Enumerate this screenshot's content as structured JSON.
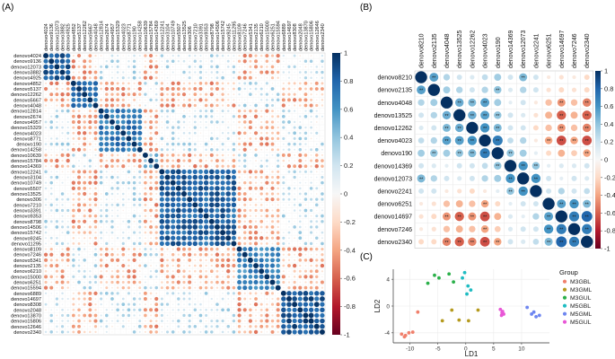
{
  "figure": {
    "panel_labels": [
      "(A)",
      "(B)",
      "(C)"
    ]
  },
  "chart_data": [
    {
      "panel": "(A)",
      "type": "heatmap",
      "subtype": "correlation-circle-matrix",
      "title": "",
      "labels": [
        "denovo4024",
        "denovo9136",
        "denovo12073",
        "denovo3882",
        "denovo4925",
        "denovo4852",
        "denovo5137",
        "denovo12262",
        "denovo5667",
        "denovo4048",
        "denovo12814",
        "denovo2674",
        "denovo4957",
        "denovo15329",
        "denovo4023",
        "denovo8771",
        "denovo190",
        "denovo14258",
        "denovo10639",
        "denovo15784",
        "denovo14369",
        "denovo12241",
        "denovo3104",
        "denovo10749",
        "denovo5507",
        "denovo13525",
        "denovo306",
        "denovo7210",
        "denovo3391",
        "denovo9353",
        "denovo8798",
        "denovo14506",
        "denovo15742",
        "denovo9245",
        "denovo11295",
        "denovo8109",
        "denovo7246",
        "denovo5341",
        "denovo2135",
        "denovo6210",
        "denovo15000",
        "denovo6251",
        "denovo15594",
        "denovo6889",
        "denovo14697",
        "denovo8308",
        "denovo2048",
        "denovo13870",
        "denovo15806",
        "denovo12646",
        "denovo2340"
      ],
      "clusters": [
        {
          "from": 0,
          "to": 4,
          "strength": 0.85
        },
        {
          "from": 5,
          "to": 9,
          "strength": 0.75
        },
        {
          "from": 10,
          "to": 17,
          "strength": 0.7
        },
        {
          "from": 18,
          "to": 20,
          "strength": 0.45
        },
        {
          "from": 21,
          "to": 34,
          "strength": 0.8
        },
        {
          "from": 35,
          "to": 42,
          "strength": 0.65
        },
        {
          "from": 43,
          "to": 50,
          "strength": 0.85
        }
      ],
      "colorbar": {
        "min": -1,
        "max": 1,
        "ticks": [
          1,
          0.8,
          0.6,
          0.4,
          0.2,
          0,
          -0.2,
          -0.4,
          -0.6,
          -0.8,
          -1
        ]
      }
    },
    {
      "panel": "(B)",
      "type": "heatmap",
      "subtype": "correlation-circle-matrix",
      "title": "",
      "labels": [
        "denovo8210",
        "denovo2135",
        "denovo4048",
        "denovo13525",
        "denovo12262",
        "denovo4023",
        "denovo190",
        "denovo14369",
        "denovo12073",
        "denovo2241",
        "denovo6251",
        "denovo14697",
        "denovo7246",
        "denovo2340"
      ],
      "matrix": [
        [
          1,
          0.55,
          0.3,
          0.2,
          0.15,
          0.25,
          0.35,
          0.2,
          0.45,
          0.2,
          -0.1,
          -0.15,
          -0.1,
          -0.2
        ],
        [
          0.55,
          1,
          0.35,
          0.3,
          0.2,
          0.3,
          0.4,
          0.15,
          0.3,
          0.2,
          -0.15,
          -0.2,
          -0.15,
          -0.2
        ],
        [
          0.3,
          0.35,
          1,
          0.5,
          0.45,
          0.55,
          0.35,
          0.1,
          0.2,
          -0.1,
          -0.3,
          -0.45,
          -0.3,
          -0.5
        ],
        [
          0.2,
          0.3,
          0.5,
          1,
          0.5,
          0.55,
          0.4,
          0.2,
          0.15,
          -0.15,
          -0.35,
          -0.6,
          -0.35,
          -0.6
        ],
        [
          0.15,
          0.2,
          0.45,
          0.5,
          1,
          0.6,
          0.45,
          0.2,
          0.2,
          -0.2,
          -0.3,
          -0.45,
          -0.3,
          -0.5
        ],
        [
          0.25,
          0.3,
          0.55,
          0.55,
          0.6,
          1,
          0.7,
          0.25,
          0.3,
          -0.1,
          -0.4,
          -0.65,
          -0.4,
          -0.65
        ],
        [
          0.35,
          0.4,
          0.35,
          0.4,
          0.45,
          0.7,
          1,
          0.4,
          0.35,
          0.1,
          -0.2,
          -0.35,
          -0.25,
          -0.4
        ],
        [
          0.2,
          0.15,
          0.1,
          0.2,
          0.2,
          0.25,
          0.4,
          1,
          0.6,
          0.4,
          0.1,
          0.15,
          0.15,
          0.2
        ],
        [
          0.45,
          0.3,
          0.2,
          0.15,
          0.2,
          0.3,
          0.35,
          0.6,
          1,
          0.6,
          0.2,
          0.1,
          0.2,
          0.15
        ],
        [
          0.2,
          0.2,
          -0.1,
          -0.15,
          -0.2,
          -0.1,
          0.1,
          0.4,
          0.6,
          1,
          0.2,
          0.3,
          0.2,
          0.25
        ],
        [
          -0.1,
          -0.15,
          -0.3,
          -0.35,
          -0.3,
          -0.4,
          -0.2,
          0.1,
          0.2,
          0.2,
          1,
          0.55,
          0.6,
          0.45
        ],
        [
          -0.15,
          -0.2,
          -0.45,
          -0.6,
          -0.45,
          -0.65,
          -0.35,
          0.15,
          0.1,
          0.3,
          0.55,
          1,
          0.7,
          0.8
        ],
        [
          -0.1,
          -0.15,
          -0.3,
          -0.35,
          -0.3,
          -0.4,
          -0.25,
          0.15,
          0.2,
          0.2,
          0.6,
          0.7,
          1,
          0.7
        ],
        [
          -0.2,
          -0.2,
          -0.5,
          -0.6,
          -0.5,
          -0.65,
          -0.4,
          0.2,
          0.15,
          0.25,
          0.45,
          0.8,
          0.7,
          1
        ]
      ],
      "significance_threshold_abs_r": 0.38,
      "significance_mark": "**",
      "colorbar": {
        "min": -1,
        "max": 1,
        "ticks": [
          1,
          0.8,
          0.6,
          0.4,
          0.2,
          0,
          -0.2,
          -0.4,
          -0.6,
          -0.8,
          -1
        ]
      }
    },
    {
      "panel": "(C)",
      "type": "scatter",
      "title": "",
      "xlabel": "LD1",
      "ylabel": "LD2",
      "xlim": [
        -13,
        15
      ],
      "ylim": [
        -5.5,
        5.5
      ],
      "xticks": [
        -10,
        -5,
        0,
        5,
        10
      ],
      "yticks": [
        -4,
        0,
        4
      ],
      "legend": {
        "title": "Group",
        "position": "right"
      },
      "series": [
        {
          "name": "M3GBL",
          "color": "#F0806C",
          "points": [
            [
              -11.5,
              -4.2
            ],
            [
              -10.8,
              -4.4
            ],
            [
              -10.2,
              -4.0
            ],
            [
              -9.5,
              -3.9
            ],
            [
              -11.0,
              -4.6
            ],
            [
              -8.6,
              -0.9
            ]
          ]
        },
        {
          "name": "M3GML",
          "color": "#B59A1E",
          "points": [
            [
              -4.2,
              -2.2
            ],
            [
              -2.5,
              -0.6
            ],
            [
              -1.2,
              -2.1
            ],
            [
              0.5,
              -2.2
            ],
            [
              2.2,
              -0.6
            ]
          ]
        },
        {
          "name": "M3GUL",
          "color": "#2BB04A",
          "points": [
            [
              -6.8,
              3.4
            ],
            [
              -5.6,
              4.6
            ],
            [
              -4.8,
              4.2
            ],
            [
              -3.0,
              4.8
            ],
            [
              -2.2,
              3.6
            ]
          ]
        },
        {
          "name": "M5GBL",
          "color": "#1FBCC2",
          "points": [
            [
              -0.6,
              4.2
            ],
            [
              0.4,
              3.0
            ],
            [
              0.2,
              1.8
            ],
            [
              -0.2,
              5.0
            ],
            [
              0.9,
              2.4
            ]
          ]
        },
        {
          "name": "M5GML",
          "color": "#6E86F0",
          "points": [
            [
              11.0,
              -0.2
            ],
            [
              11.8,
              -1.2
            ],
            [
              12.6,
              -1.6
            ],
            [
              12.2,
              -0.9
            ],
            [
              13.2,
              -1.4
            ]
          ]
        },
        {
          "name": "M5GUL",
          "color": "#E857D6",
          "points": [
            [
              6.2,
              -0.5
            ],
            [
              6.4,
              -1.4
            ],
            [
              6.6,
              -0.8
            ],
            [
              6.8,
              -1.2
            ],
            [
              6.5,
              -1.0
            ]
          ]
        }
      ]
    }
  ]
}
